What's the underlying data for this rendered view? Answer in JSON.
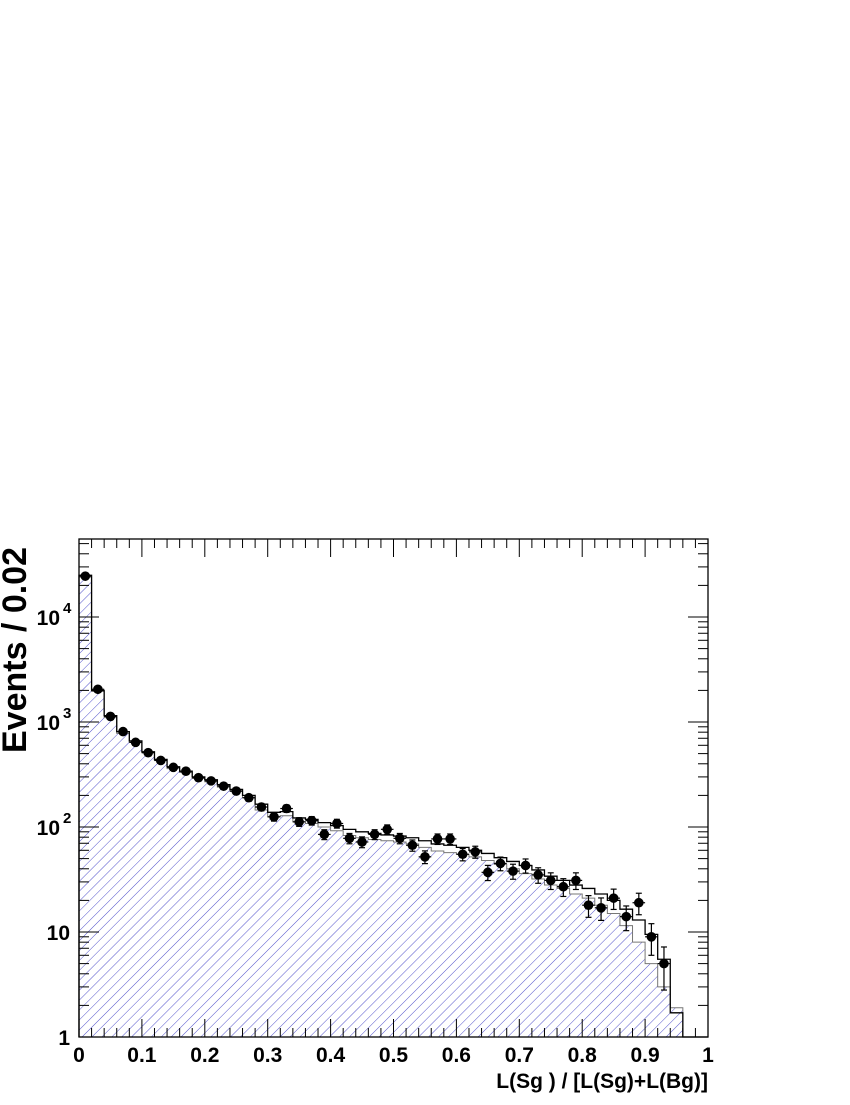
{
  "chart_data": {
    "type": "histogram",
    "xlabel": "L(Sg ) / [L(Sg)+L(Bg)]",
    "ylabel": "Events /  0.02",
    "xlim": [
      0,
      1
    ],
    "ylim": [
      1,
      50000
    ],
    "y_scale": "log",
    "bin_width": 0.02,
    "x_ticks": [
      "0",
      "0.1",
      "0.2",
      "0.3",
      "0.4",
      "0.5",
      "0.6",
      "0.7",
      "0.8",
      "0.9",
      "1"
    ],
    "y_ticks": [
      {
        "label": "1",
        "value": 1
      },
      {
        "label": "10",
        "value": 10
      },
      {
        "label": "10",
        "sup": "2",
        "value": 100
      },
      {
        "label": "10",
        "sup": "3",
        "value": 1000
      },
      {
        "label": "10",
        "sup": "4",
        "value": 10000
      }
    ],
    "colors": {
      "hatch": "#5555cc",
      "total_line": "#000000",
      "background_line": "#777777",
      "points": "#000000"
    },
    "series": [
      {
        "kind": "hatched-histogram",
        "values": [
          24000,
          1950,
          1100,
          780,
          640,
          510,
          430,
          360,
          330,
          290,
          270,
          240,
          218,
          190,
          145,
          125,
          128,
          112,
          108,
          100,
          92,
          83,
          79,
          76,
          74,
          72,
          69,
          64,
          59,
          57,
          55,
          52,
          48,
          44,
          40,
          36,
          32,
          28,
          26,
          23,
          21,
          18,
          15,
          11.5,
          8,
          5,
          3,
          1.9,
          1,
          1
        ]
      },
      {
        "kind": "line-histogram",
        "values": [
          25000,
          2000,
          1150,
          810,
          660,
          520,
          440,
          375,
          340,
          300,
          282,
          253,
          228,
          200,
          165,
          138,
          140,
          122,
          118,
          110,
          103,
          95,
          90,
          87,
          84,
          82,
          79,
          74,
          69,
          67,
          64,
          60,
          56,
          51,
          47,
          43,
          39,
          34,
          31,
          28,
          26,
          23,
          20,
          16.5,
          13,
          9.5,
          5.5,
          1.7,
          1,
          1
        ]
      },
      {
        "kind": "data-points",
        "values": [
          24500,
          2050,
          1130,
          810,
          640,
          510,
          430,
          370,
          340,
          295,
          275,
          245,
          220,
          190,
          155,
          125,
          150,
          112,
          115,
          85,
          108,
          78,
          72,
          85,
          95,
          78,
          67,
          52,
          77,
          77,
          55,
          58,
          37,
          45,
          38,
          43,
          35,
          31,
          27,
          31,
          18,
          17,
          21,
          14,
          19,
          9,
          5
        ],
        "errors": [
          155,
          45,
          34,
          28,
          25,
          23,
          21,
          19,
          18,
          17,
          16.5,
          15.7,
          14.8,
          13.8,
          12.4,
          11.2,
          12.2,
          10.6,
          10.7,
          9.2,
          10.4,
          8.8,
          8.5,
          9.2,
          9.7,
          8.8,
          8.2,
          7.2,
          8.8,
          8.8,
          7.4,
          7.6,
          6.1,
          6.7,
          6.2,
          6.6,
          5.9,
          5.6,
          5.2,
          5.6,
          4.2,
          4.1,
          4.6,
          3.7,
          4.4,
          3.0,
          2.2
        ]
      }
    ]
  }
}
